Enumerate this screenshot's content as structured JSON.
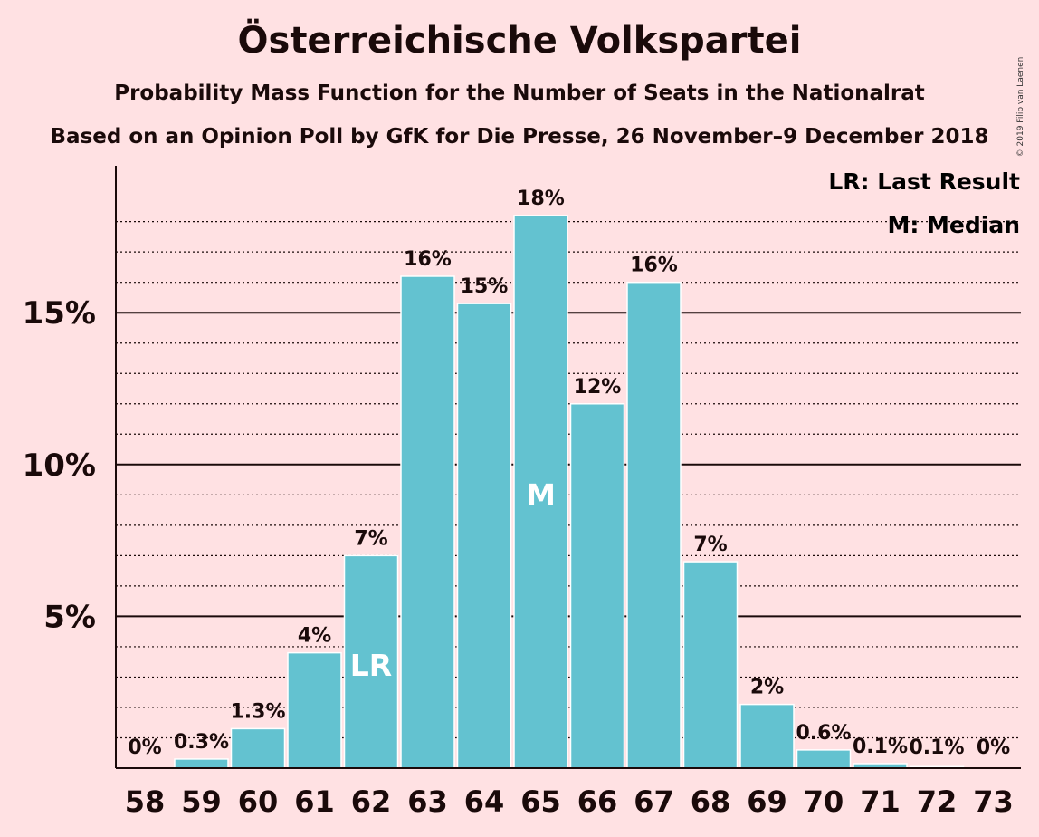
{
  "title": "Österreichische Volkspartei",
  "subtitle": "Probability Mass Function for the Number of Seats in the Nationalrat",
  "subtitle2": "Based on an Opinion Poll by GfK for Die Presse, 26 November–9 December 2018",
  "copyright": "© 2019 Filip van Laenen",
  "legend": {
    "last_result": "LR: Last Result",
    "median": "M: Median"
  },
  "colors": {
    "background": "#ffe1e3",
    "bar": "#63c2d0",
    "text": "#1a0a0a",
    "marker_text": "#ffffff"
  },
  "chart_data": {
    "type": "bar",
    "title": "Österreichische Volkspartei",
    "xlabel": "",
    "ylabel": "",
    "categories": [
      "58",
      "59",
      "60",
      "61",
      "62",
      "63",
      "64",
      "65",
      "66",
      "67",
      "68",
      "69",
      "70",
      "71",
      "72",
      "73"
    ],
    "values": [
      0.0,
      0.3,
      1.3,
      3.8,
      7.0,
      16.2,
      15.3,
      18.2,
      12.0,
      16.0,
      6.8,
      2.1,
      0.6,
      0.15,
      0.05,
      0.0
    ],
    "labels": [
      "0%",
      "0.3%",
      "1.3%",
      "4%",
      "7%",
      "16%",
      "15%",
      "18%",
      "12%",
      "16%",
      "7%",
      "2%",
      "0.6%",
      "0.1%",
      "0.1%",
      "0%"
    ],
    "ylim": [
      0,
      19.8
    ],
    "yticks": [
      {
        "value": 5,
        "label": "5%"
      },
      {
        "value": 10,
        "label": "10%"
      },
      {
        "value": 15,
        "label": "15%"
      }
    ],
    "minor_gridlines": [
      1,
      2,
      3,
      4,
      6,
      7,
      8,
      9,
      11,
      12,
      13,
      14,
      16,
      17,
      18
    ],
    "grid": true,
    "legend_position": "top-right",
    "markers": [
      {
        "category": "62",
        "label": "LR"
      },
      {
        "category": "65",
        "label": "M"
      }
    ]
  }
}
